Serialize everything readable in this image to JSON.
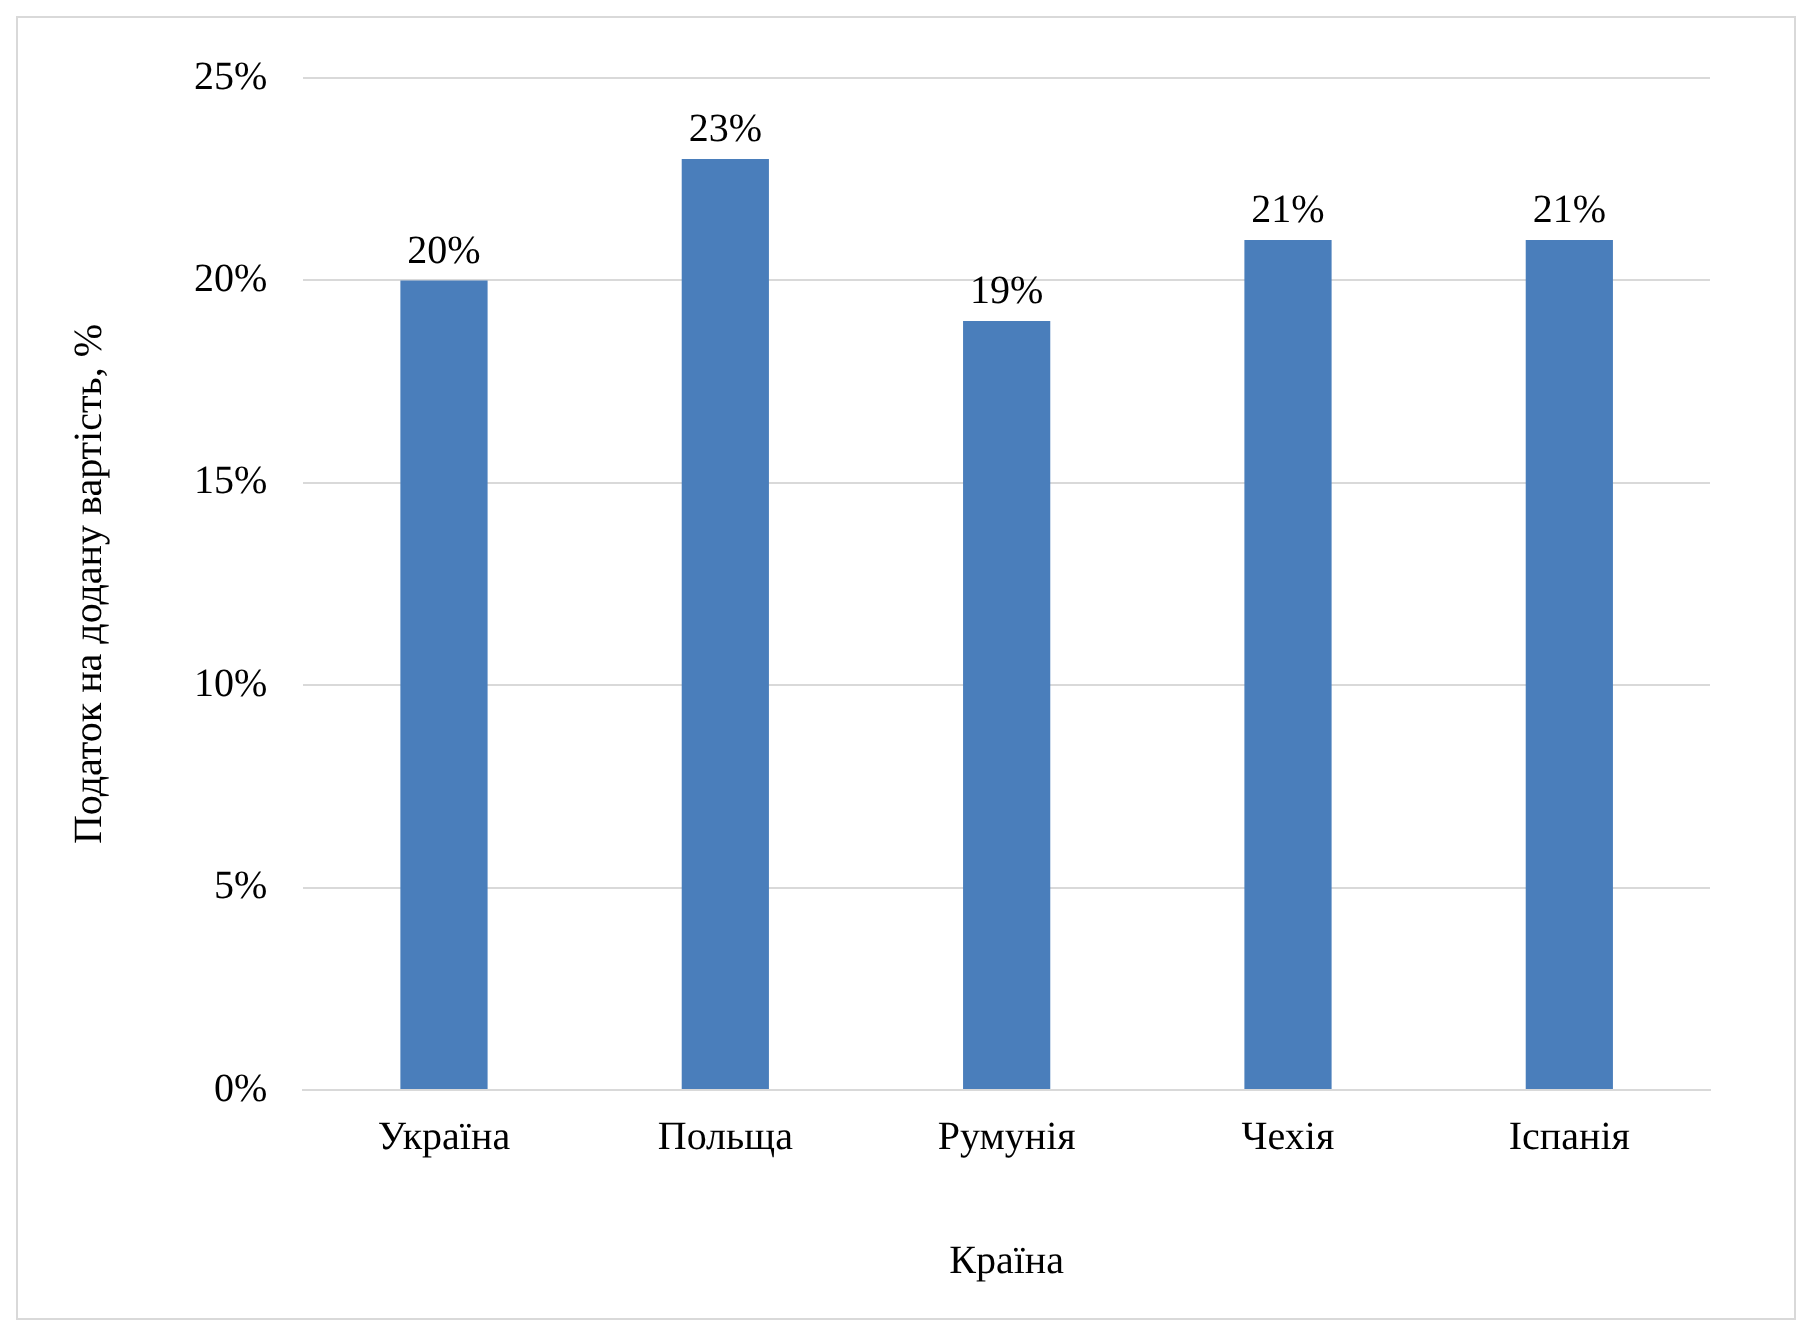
{
  "chart_data": {
    "type": "bar",
    "xlabel": "Країна",
    "ylabel": "Податок на додану вартість, %",
    "categories": [
      "Україна",
      "Польща",
      "Румунія",
      "Чехія",
      "Іспанія"
    ],
    "values": [
      20,
      23,
      19,
      21,
      21
    ],
    "color": "#4a7ebb",
    "value_labels": [
      "20%",
      "23%",
      "19%",
      "21%",
      "21%"
    ],
    "ylim": [
      0,
      25
    ],
    "yticks": [
      {
        "value": 0,
        "label": "0%"
      },
      {
        "value": 5,
        "label": "5%"
      },
      {
        "value": 10,
        "label": "10%"
      },
      {
        "value": 15,
        "label": "15%"
      },
      {
        "value": 20,
        "label": "20%"
      },
      {
        "value": 25,
        "label": "25%"
      }
    ],
    "grid": "y",
    "legend": false
  }
}
